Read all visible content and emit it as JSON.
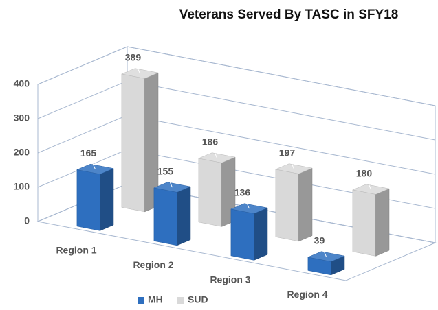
{
  "chart_data": {
    "type": "bar3d",
    "title": "Veterans Served By TASC in SFY18",
    "categories": [
      "Region 1",
      "Region 2",
      "Region 3",
      "Region 4"
    ],
    "series": [
      {
        "name": "MH",
        "color": "#2e6fbf",
        "values": [
          165,
          155,
          136,
          39
        ]
      },
      {
        "name": "SUD",
        "color": "#d9d9d9",
        "values": [
          389,
          186,
          197,
          180
        ]
      }
    ],
    "ylim": [
      0,
      400
    ],
    "yticks": [
      0,
      100,
      200,
      300,
      400
    ],
    "grid": true,
    "legend": "bottom"
  }
}
